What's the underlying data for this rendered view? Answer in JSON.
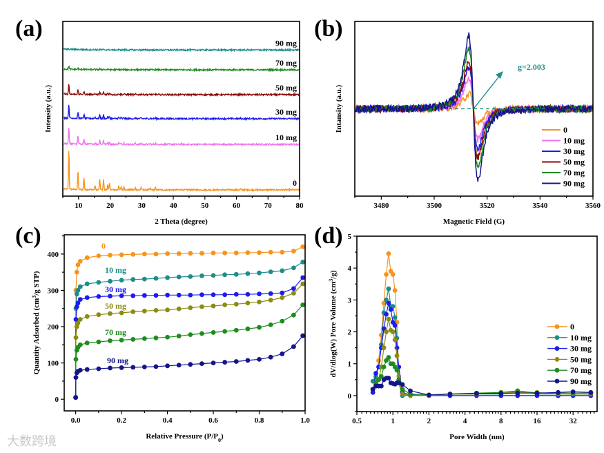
{
  "panels": {
    "a": "(a)",
    "b": "(b)",
    "c": "(c)",
    "d": "(d)"
  },
  "watermark": "大数跨境",
  "colors": {
    "s0": "#f7931e",
    "pink": "#f272ee",
    "teal": "#1e8c8c",
    "blue": "#1c1cf0",
    "darkred": "#8b0a0a",
    "olive": "#8c8c14",
    "green": "#1e8c1e",
    "navy": "#14148c"
  },
  "chart_data": [
    {
      "id": "a",
      "type": "line",
      "title": "",
      "xlabel": "2 Theta (degree)",
      "ylabel": "Intensity (a.u.)",
      "xlim": [
        5,
        80
      ],
      "ylim": [
        0,
        4.22
      ],
      "xticks": [
        "10",
        "20",
        "30",
        "40",
        "50",
        "60",
        "70",
        "80"
      ],
      "peaks_2theta_relative_height": [
        [
          6.9,
          1
        ],
        [
          9.8,
          0.45
        ],
        [
          11.7,
          0.3
        ],
        [
          15.2,
          0.1
        ],
        [
          16.7,
          0.26
        ],
        [
          17.9,
          0.26
        ],
        [
          19.2,
          0.12
        ],
        [
          19.8,
          0.15
        ],
        [
          22.7,
          0.1
        ],
        [
          23.5,
          0.08
        ],
        [
          24.4,
          0.08
        ],
        [
          28.0,
          0.05
        ],
        [
          29.8,
          0.06
        ],
        [
          32.7,
          0.04
        ],
        [
          34.3,
          0.06
        ],
        [
          42.5,
          0.03
        ],
        [
          61.3,
          0.03
        ]
      ],
      "series": [
        {
          "name": "0",
          "label": "0",
          "color": "#f7931e",
          "offset": 0.15,
          "scale": 1.0
        },
        {
          "name": "10 mg",
          "label": "10 mg",
          "color": "#f272ee",
          "offset": 1.25,
          "scale": 0.42
        },
        {
          "name": "30 mg",
          "label": "30 mg",
          "color": "#1c1cf0",
          "offset": 1.87,
          "scale": 0.34
        },
        {
          "name": "50 mg",
          "label": "50 mg",
          "color": "#8b0a0a",
          "offset": 2.45,
          "scale": 0.25
        },
        {
          "name": "70 mg",
          "label": "70 mg",
          "color": "#1e8c1e",
          "offset": 3.05,
          "scale": 0.08
        },
        {
          "name": "90 mg",
          "label": "90 mg",
          "color": "#1e8c8c",
          "offset": 3.53,
          "scale": 0.01
        }
      ]
    },
    {
      "id": "b",
      "type": "line",
      "title": "",
      "xlabel": "Magnetic Field (G)",
      "ylabel": "Intansity (a.u.)",
      "xlim": [
        3470,
        3560
      ],
      "ylim": [
        -1.2,
        1.2
      ],
      "xticks": [
        "3480",
        "3500",
        "3520",
        "3540",
        "3560"
      ],
      "center_field": 3514.8,
      "linewidth_param": 3,
      "annotation": "g=2.003",
      "legend_position": "bottom-right",
      "series": [
        {
          "name": "0",
          "color": "#f7931e",
          "amplitude": 0.21
        },
        {
          "name": "10 mg",
          "color": "#f272ee",
          "amplitude": 0.42
        },
        {
          "name": "30 mg",
          "color": "#1c1cf0",
          "amplitude": 0.57
        },
        {
          "name": "50 mg",
          "color": "#8b0a0a",
          "amplitude": 0.67
        },
        {
          "name": "70 mg",
          "color": "#1e8c1e",
          "amplitude": 0.83
        },
        {
          "name": "90 mg",
          "color": "#14148c",
          "amplitude": 1.0
        }
      ]
    },
    {
      "id": "c",
      "type": "scatter",
      "title": "",
      "xlabel": "Relative Pressure (P/P",
      "xlabel_sub": "0",
      "xlabel_end": ")",
      "ylabel": "Quantity Adsorbed (cm",
      "ylabel_sup": "3",
      "ylabel_end": "/g STP)",
      "xlim": [
        -0.05,
        1.0
      ],
      "ylim": [
        -32,
        453
      ],
      "xticks": [
        "0.0",
        "0.2",
        "0.4",
        "0.6",
        "0.8",
        "1.0"
      ],
      "yticks": [
        "0",
        "100",
        "200",
        "300",
        "400"
      ],
      "x": [
        0,
        0.001,
        0.005,
        0.01,
        0.02,
        0.05,
        0.1,
        0.15,
        0.2,
        0.25,
        0.3,
        0.35,
        0.4,
        0.45,
        0.5,
        0.55,
        0.6,
        0.65,
        0.7,
        0.75,
        0.8,
        0.85,
        0.9,
        0.95,
        0.99
      ],
      "series": [
        {
          "name": "0",
          "color": "#f7931e",
          "values": [
            5,
            300,
            350,
            370,
            380,
            390,
            395,
            397,
            398,
            399,
            400,
            400,
            401,
            401,
            402,
            402,
            403,
            403,
            403,
            404,
            404,
            405,
            405,
            408,
            420
          ]
        },
        {
          "name": "10 mg",
          "color": "#1e8c8c",
          "values": [
            5,
            250,
            290,
            300,
            310,
            318,
            322,
            325,
            328,
            330,
            331,
            333,
            335,
            337,
            338,
            340,
            341,
            343,
            344,
            346,
            348,
            351,
            354,
            362,
            378
          ]
        },
        {
          "name": "30 mg",
          "color": "#1c1cf0",
          "values": [
            5,
            220,
            255,
            265,
            275,
            280,
            283,
            284,
            285,
            285,
            286,
            286,
            287,
            287,
            287,
            288,
            288,
            288,
            289,
            289,
            290,
            291,
            293,
            305,
            335
          ]
        },
        {
          "name": "50 mg",
          "color": "#8c8c14",
          "values": [
            5,
            170,
            200,
            210,
            220,
            228,
            233,
            236,
            238,
            241,
            243,
            245,
            246,
            249,
            252,
            255,
            257,
            260,
            262,
            265,
            268,
            273,
            280,
            292,
            318
          ]
        },
        {
          "name": "70 mg",
          "color": "#1e8c1e",
          "values": [
            5,
            110,
            135,
            143,
            150,
            155,
            158,
            161,
            163,
            165,
            167,
            169,
            171,
            174,
            178,
            181,
            184,
            187,
            190,
            194,
            198,
            205,
            215,
            232,
            260
          ]
        },
        {
          "name": "90 mg",
          "color": "#14148c",
          "values": [
            5,
            60,
            73,
            77,
            80,
            82,
            84,
            86,
            87,
            88,
            89,
            90,
            92,
            94,
            96,
            98,
            100,
            102,
            104,
            107,
            110,
            116,
            125,
            145,
            175
          ]
        }
      ]
    },
    {
      "id": "d",
      "type": "line",
      "title": "",
      "xlabel": "Pore Width (nm)",
      "ylabel": "dV/dlog(W) Pore Volume (cm",
      "ylabel_sup": "3",
      "ylabel_end": "/g)",
      "xscale": "log2",
      "xlim": [
        0.5,
        50.8
      ],
      "ylim": [
        -0.5,
        5
      ],
      "xticks": [
        "0.5",
        "1",
        "2",
        "4",
        "8",
        "16",
        "32"
      ],
      "yticks": [
        "0",
        "1",
        "2",
        "3",
        "4",
        "5"
      ],
      "legend_position": "right",
      "x": [
        0.68,
        0.72,
        0.76,
        0.8,
        0.84,
        0.88,
        0.92,
        0.96,
        1.0,
        1.04,
        1.08,
        1.12,
        1.2,
        1.4,
        2,
        3,
        5,
        8,
        11,
        16,
        24,
        32,
        45
      ],
      "series": [
        {
          "name": "0",
          "color": "#f7931e",
          "values": [
            0.2,
            0.5,
            1.1,
            1.9,
            2.9,
            3.8,
            4.45,
            3.9,
            3.8,
            3.3,
            2.3,
            0.6,
            0,
            0,
            0,
            0,
            0,
            0,
            0,
            0,
            0,
            0,
            0
          ]
        },
        {
          "name": "10 mg",
          "color": "#1e8c8c",
          "values": [
            0.45,
            0.6,
            0.9,
            1.6,
            2.6,
            3.0,
            3.35,
            2.8,
            2.8,
            2.45,
            1.8,
            0.4,
            0,
            0,
            0.02,
            0.05,
            0.05,
            0.05,
            0.15,
            0.05,
            0.05,
            0.05,
            0.05
          ]
        },
        {
          "name": "30 mg",
          "color": "#1c1cf0",
          "values": [
            0.1,
            0.7,
            0.9,
            1.5,
            2.1,
            2.55,
            2.9,
            2.7,
            2.3,
            2.2,
            1.5,
            0.9,
            0.1,
            0.02,
            0,
            0,
            0,
            0,
            0,
            0,
            0,
            0,
            0
          ]
        },
        {
          "name": "50 mg",
          "color": "#8c8c14",
          "values": [
            0.2,
            0.3,
            0.5,
            0.9,
            1.5,
            2.0,
            2.4,
            2.05,
            2.0,
            1.75,
            1.25,
            0.4,
            0.05,
            0,
            0,
            0.05,
            0.05,
            0.1,
            0.1,
            0.1,
            0.05,
            0.05,
            0.05
          ]
        },
        {
          "name": "70 mg",
          "color": "#1e8c1e",
          "values": [
            0.2,
            0.4,
            0.5,
            0.6,
            0.9,
            1.1,
            1.2,
            1.0,
            1.0,
            0.9,
            0.8,
            0.5,
            0.2,
            0.05,
            0.02,
            0.05,
            0.08,
            0.1,
            0.15,
            0.08,
            0.08,
            0.08,
            0.08
          ]
        },
        {
          "name": "90 mg",
          "color": "#14148c",
          "values": [
            0.2,
            0.3,
            0.3,
            0.3,
            0.5,
            0.55,
            0.55,
            0.4,
            0.38,
            0.36,
            0.4,
            0.4,
            0.35,
            0.15,
            0.02,
            0.05,
            0.07,
            0.07,
            0.08,
            0.08,
            0.1,
            0.12,
            0.1
          ]
        }
      ]
    }
  ]
}
